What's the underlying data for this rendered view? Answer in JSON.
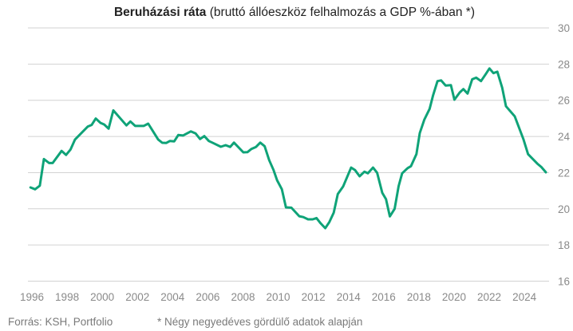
{
  "chart_data": {
    "type": "line",
    "title_bold": "Beruházási ráta",
    "title_rest": " (bruttó állóeszköz felhalmozás a GDP %-ában *)",
    "xlabel": "",
    "ylabel": "",
    "xlim": [
      1996,
      2025.3
    ],
    "ylim": [
      16,
      30
    ],
    "x_ticks": [
      "1996",
      "1998",
      "2000",
      "2002",
      "2004",
      "2006",
      "2008",
      "2010",
      "2012",
      "2014",
      "2016",
      "2018",
      "2020",
      "2022",
      "2024"
    ],
    "y_ticks": [
      "16",
      "18",
      "20",
      "22",
      "24",
      "26",
      "28",
      "30"
    ],
    "y_axis_side": "right",
    "grid": "horizontal",
    "line_color": "#0fa378",
    "series": [
      {
        "x": [
          1995.92,
          1996.18,
          1996.45,
          1996.68,
          1996.98,
          1997.18,
          1997.69,
          1997.94,
          1998.19,
          1998.45,
          1999.18,
          1999.4,
          1999.63,
          1999.9,
          2000.11,
          2000.36,
          2000.63,
          2001.37,
          2001.6,
          2001.87,
          2002.35,
          2002.61,
          2003.18,
          2003.41,
          2003.64,
          2003.84,
          2004.09,
          2004.32,
          2004.59,
          2005.04,
          2005.3,
          2005.56,
          2005.8,
          2006.06,
          2006.29,
          2006.74,
          2007.01,
          2007.27,
          2007.49,
          2008.02,
          2008.25,
          2008.48,
          2008.74,
          2008.98,
          2009.23,
          2009.49,
          2009.73,
          2009.94,
          2010.21,
          2010.44,
          2010.75,
          2011.2,
          2011.43,
          2011.7,
          2011.96,
          2012.18,
          2012.41,
          2012.68,
          2012.91,
          2013.16,
          2013.39,
          2013.69,
          2014.15,
          2014.37,
          2014.63,
          2014.9,
          2015.1,
          2015.39,
          2015.63,
          2015.92,
          2016.13,
          2016.35,
          2016.62,
          2016.85,
          2017.05,
          2017.36,
          2017.55,
          2017.86,
          2018.05,
          2018.31,
          2018.61,
          2018.81,
          2019.06,
          2019.26,
          2019.52,
          2019.82,
          2020.02,
          2020.32,
          2020.53,
          2020.77,
          2021.03,
          2021.26,
          2021.53,
          2021.79,
          2022.01,
          2022.24,
          2022.46,
          2022.74,
          2022.95,
          2023.45,
          2023.95,
          2024.21,
          2024.73,
          2024.96,
          2025.22
        ],
        "y": [
          21.18,
          21.08,
          21.28,
          22.75,
          22.53,
          22.53,
          23.2,
          22.98,
          23.27,
          23.83,
          24.55,
          24.64,
          24.99,
          24.75,
          24.66,
          24.43,
          25.44,
          24.61,
          24.83,
          24.58,
          24.58,
          24.71,
          23.83,
          23.65,
          23.64,
          23.75,
          23.73,
          24.08,
          24.05,
          24.28,
          24.17,
          23.86,
          24.02,
          23.75,
          23.64,
          23.43,
          23.52,
          23.42,
          23.66,
          23.12,
          23.13,
          23.31,
          23.42,
          23.66,
          23.46,
          22.69,
          22.16,
          21.58,
          21.08,
          20.08,
          20.06,
          19.59,
          19.54,
          19.42,
          19.42,
          19.49,
          19.2,
          18.93,
          19.27,
          19.79,
          20.82,
          21.23,
          22.28,
          22.14,
          21.8,
          22.05,
          21.96,
          22.28,
          21.99,
          20.88,
          20.53,
          19.58,
          20.0,
          21.25,
          21.96,
          22.25,
          22.36,
          23.02,
          24.19,
          24.93,
          25.52,
          26.28,
          27.06,
          27.1,
          26.81,
          26.84,
          26.03,
          26.43,
          26.62,
          26.37,
          27.16,
          27.25,
          27.06,
          27.43,
          27.76,
          27.5,
          27.58,
          26.69,
          25.67,
          25.11,
          23.83,
          23.02,
          22.5,
          22.31,
          22.02
        ]
      }
    ]
  },
  "footer": {
    "source": "Forrás: KSH, Portfolio",
    "note": "* Négy negyedéves gördülő adatok alapján"
  }
}
